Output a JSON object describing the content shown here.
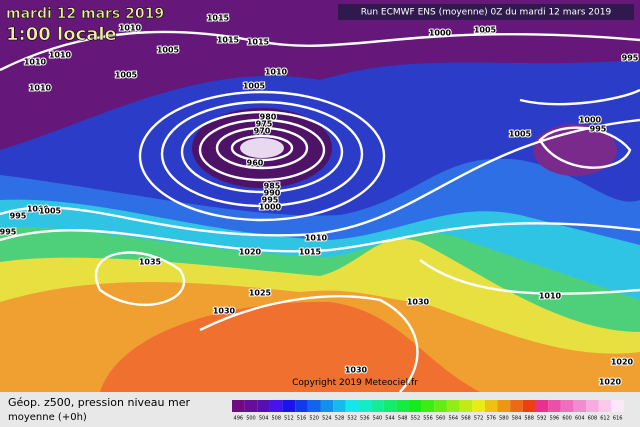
{
  "header": {
    "date": "mardi 12 mars 2019",
    "time": "1:00 locale",
    "run": "Run ECMWF ENS (moyenne) 0Z du mardi 12 mars 2019"
  },
  "copyright": "Copyright 2019 Meteociel.fr",
  "footer": {
    "title": "Géop. z500, pression niveau mer",
    "subtitle": "moyenne  (+0h)"
  },
  "isobar_labels": [
    "1015",
    "1010",
    "1015",
    "1005",
    "1010",
    "1010",
    "1005",
    "1010",
    "1005",
    "1010",
    "980",
    "975",
    "970",
    "960",
    "985",
    "990",
    "995",
    "1000",
    "1000",
    "1005",
    "995",
    "995",
    "1010",
    "1015",
    "1020",
    "1035",
    "1025",
    "1030",
    "1030",
    "1030",
    "1005",
    "1000",
    "995",
    "995",
    "1000",
    "1005",
    "1010",
    "1020",
    "1020",
    "1015"
  ],
  "colorbar": {
    "ticks": [
      496,
      500,
      504,
      508,
      512,
      516,
      520,
      524,
      528,
      532,
      536,
      540,
      544,
      548,
      552,
      556,
      560,
      564,
      568,
      572,
      576,
      580,
      584,
      588,
      592,
      596,
      600,
      604,
      608,
      612,
      616
    ]
  }
}
